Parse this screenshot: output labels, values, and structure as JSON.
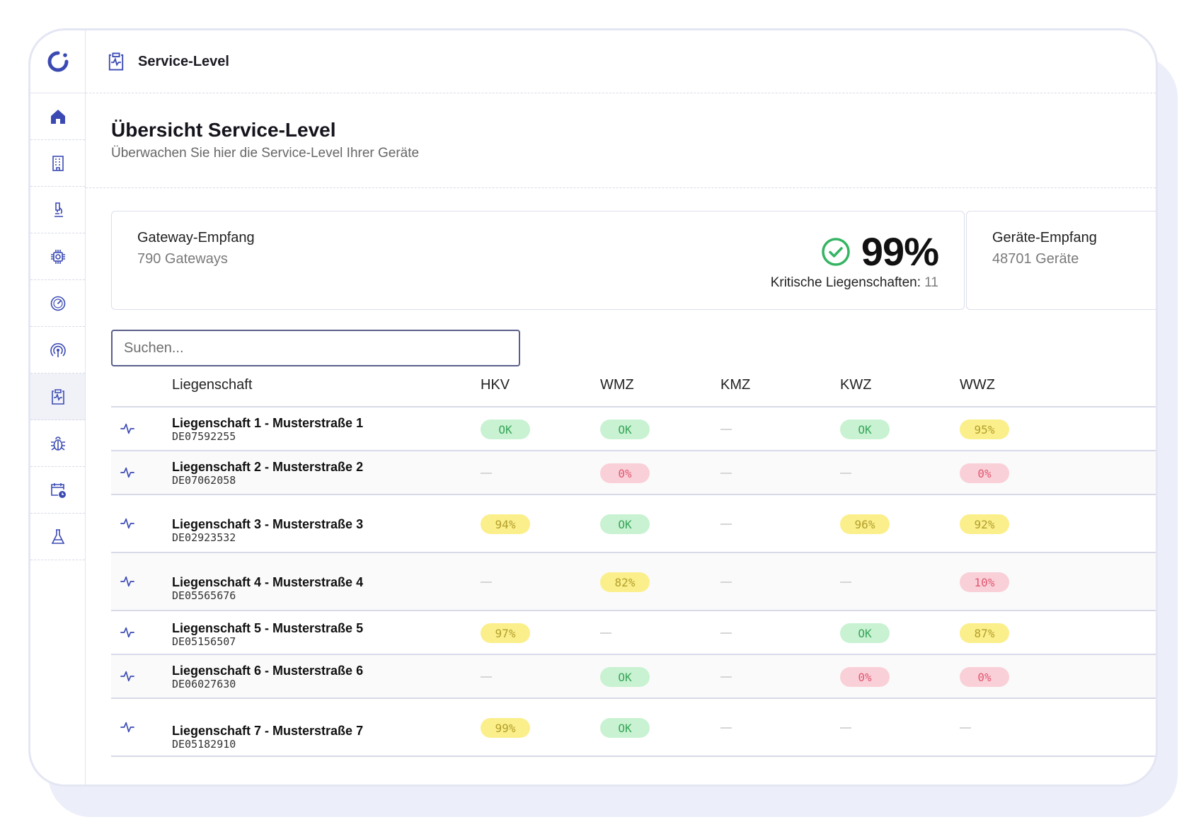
{
  "header": {
    "title": "Service-Level"
  },
  "page": {
    "title": "Übersicht Service-Level",
    "subtitle": "Überwachen Sie hier die Service-Level Ihrer Geräte"
  },
  "sidebar": {
    "items": [
      {
        "icon": "home-icon"
      },
      {
        "icon": "building-icon"
      },
      {
        "icon": "microscope-icon"
      },
      {
        "icon": "chip-icon"
      },
      {
        "icon": "gauge-icon"
      },
      {
        "icon": "signal-icon"
      },
      {
        "icon": "service-level-icon",
        "active": true
      },
      {
        "icon": "bug-icon"
      },
      {
        "icon": "calendar-clock-icon"
      },
      {
        "icon": "flask-icon"
      }
    ]
  },
  "stats": {
    "gateway": {
      "label": "Gateway-Empfang",
      "count": "790 Gateways",
      "percent": "99%",
      "critical_label": "Kritische Liegenschaften:",
      "critical_value": "11"
    },
    "devices": {
      "label": "Geräte-Empfang",
      "count": "48701 Geräte"
    }
  },
  "search": {
    "placeholder": "Suchen..."
  },
  "table": {
    "columns": [
      "Liegenschaft",
      "HKV",
      "WMZ",
      "KMZ",
      "KWZ",
      "WWZ"
    ],
    "rows": [
      {
        "name": "Liegenschaft 1 - Musterstraße 1",
        "id": "DE07592255",
        "values": [
          "OK",
          "OK",
          "",
          "OK",
          "95%"
        ]
      },
      {
        "name": "Liegenschaft 2 - Musterstraße 2",
        "id": "DE07062058",
        "values": [
          "",
          "0%",
          "",
          "",
          "0%"
        ]
      },
      {
        "name": "Liegenschaft 3 - Musterstraße 3",
        "id": "DE02923532",
        "values": [
          "94%",
          "OK",
          "",
          "96%",
          "92%"
        ]
      },
      {
        "name": "Liegenschaft 4 - Musterstraße 4",
        "id": "DE05565676",
        "values": [
          "",
          "82%",
          "",
          "",
          "10%"
        ]
      },
      {
        "name": "Liegenschaft 5 - Musterstraße 5",
        "id": "DE05156507",
        "values": [
          "97%",
          "",
          "",
          "OK",
          "87%"
        ]
      },
      {
        "name": "Liegenschaft 6 - Musterstraße 6",
        "id": "DE06027630",
        "values": [
          "",
          "OK",
          "",
          "0%",
          "0%"
        ]
      },
      {
        "name": "Liegenschaft 7 - Musterstraße 7",
        "id": "DE05182910",
        "values": [
          "99%",
          "OK",
          "",
          "",
          ""
        ]
      }
    ]
  },
  "colors": {
    "accent": "#3b4ab3",
    "ok_bg": "#c8f2d2",
    "ok_text": "#3aa65a",
    "warn_bg": "#fbef8c",
    "warn_text": "#b39f2a",
    "bad_bg": "#fad0d8",
    "bad_text": "#e05872",
    "check_green": "#35b463"
  }
}
